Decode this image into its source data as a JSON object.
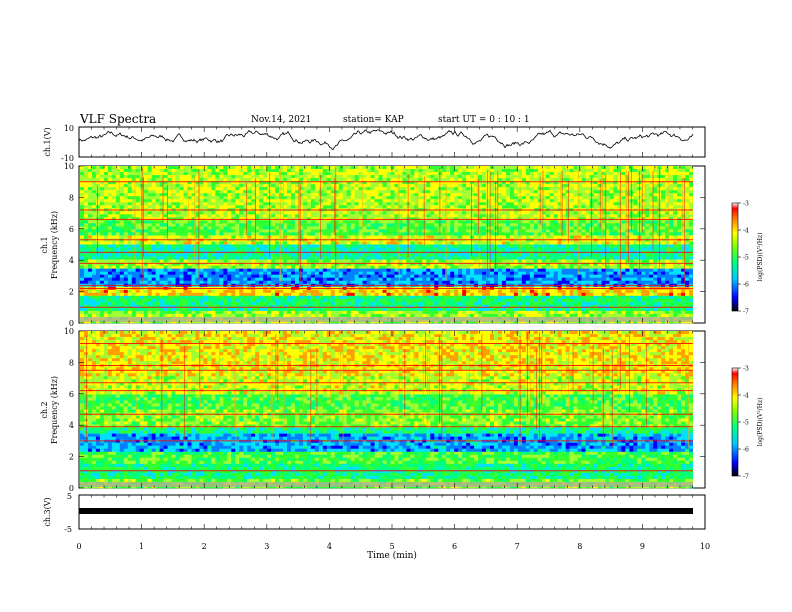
{
  "header": {
    "title": "VLF Spectra",
    "date": "Nov.14, 2021",
    "station": "station= KAP",
    "start": "start  UT =   0 : 10 : 1"
  },
  "chart_data": [
    {
      "type": "line",
      "ylabel": "ch.1(V)",
      "ylim": [
        -10,
        10
      ],
      "y_ticks": [
        "10",
        "-10"
      ],
      "xlim": [
        0,
        10
      ],
      "description": "ch.1 waveform envelope, fluctuating roughly between -6 and 8 V over 0–9.8 min"
    },
    {
      "type": "heatmap",
      "ylabel": "ch.1\nFrequency (kHz)",
      "ylabel_line1": "ch.1",
      "ylabel_line2": "Frequency (kHz)",
      "ylim": [
        0,
        10
      ],
      "y_ticks": [
        "0",
        "2",
        "4",
        "6",
        "8",
        "10"
      ],
      "xlim": [
        0,
        10
      ],
      "colorbar": {
        "label": "log(PSD)(V²/Hz)",
        "ticks": [
          "-3",
          "-4",
          "-5",
          "-6",
          "-7"
        ],
        "range": [
          -7,
          -3
        ]
      }
    },
    {
      "type": "heatmap",
      "ylabel_line1": "ch.2",
      "ylabel_line2": "Frequency (kHz)",
      "ylim": [
        0,
        10
      ],
      "y_ticks": [
        "0",
        "2",
        "4",
        "6",
        "8",
        "10"
      ],
      "xlim": [
        0,
        10
      ],
      "colorbar": {
        "label": "log(PSD)(V²/Hz)",
        "ticks": [
          "-3",
          "-4",
          "-5",
          "-6",
          "-7"
        ],
        "range": [
          -7,
          -3
        ]
      }
    },
    {
      "type": "line",
      "ylabel": "ch.3(V)",
      "ylim": [
        -5,
        5
      ],
      "y_ticks": [
        "5",
        "-5"
      ],
      "xlim": [
        0,
        10
      ],
      "description": "ch.3 flat band near -1 V"
    }
  ],
  "x_axis": {
    "label": "Time  (min)",
    "ticks": [
      "0",
      "1",
      "2",
      "3",
      "4",
      "5",
      "6",
      "7",
      "8",
      "9",
      "10"
    ]
  },
  "colors": {
    "spectrum": [
      "#000080",
      "#0000ff",
      "#0080ff",
      "#00e0ff",
      "#00ff80",
      "#30ff30",
      "#a0ff30",
      "#ffff00",
      "#ffa000",
      "#ff0000"
    ]
  }
}
